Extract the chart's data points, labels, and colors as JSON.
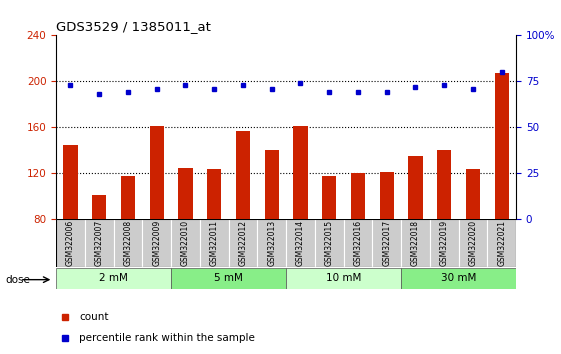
{
  "title": "GDS3529 / 1385011_at",
  "samples": [
    "GSM322006",
    "GSM322007",
    "GSM322008",
    "GSM322009",
    "GSM322010",
    "GSM322011",
    "GSM322012",
    "GSM322013",
    "GSM322014",
    "GSM322015",
    "GSM322016",
    "GSM322017",
    "GSM322018",
    "GSM322019",
    "GSM322020",
    "GSM322021"
  ],
  "bar_values": [
    145,
    101,
    118,
    161,
    125,
    124,
    157,
    140,
    161,
    118,
    120,
    121,
    135,
    140,
    124,
    207
  ],
  "dot_values_pct": [
    73,
    68,
    69,
    71,
    73,
    71,
    73,
    71,
    74,
    69,
    69,
    69,
    72,
    73,
    71,
    80
  ],
  "bar_color": "#cc2200",
  "dot_color": "#0000cc",
  "ylim_left": [
    80,
    240
  ],
  "ylim_right": [
    0,
    100
  ],
  "yticks_left": [
    80,
    120,
    160,
    200,
    240
  ],
  "yticks_right": [
    0,
    25,
    50,
    75,
    100
  ],
  "dose_groups": [
    {
      "label": "2 mM",
      "start": 0,
      "end": 4,
      "color": "#ccffcc"
    },
    {
      "label": "5 mM",
      "start": 4,
      "end": 8,
      "color": "#88ee88"
    },
    {
      "label": "10 mM",
      "start": 8,
      "end": 12,
      "color": "#ccffcc"
    },
    {
      "label": "30 mM",
      "start": 12,
      "end": 16,
      "color": "#88ee88"
    }
  ],
  "legend_count_label": "count",
  "legend_pct_label": "percentile rank within the sample",
  "dose_label": "dose",
  "background_color": "#ffffff",
  "grid_yticks": [
    120,
    160,
    200
  ]
}
